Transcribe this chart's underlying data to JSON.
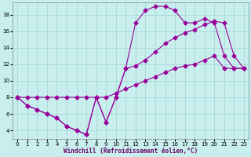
{
  "xlabel": "Windchill (Refroidissement éolien,°C)",
  "background_color": "#c8eeee",
  "grid_color": "#a0d4d4",
  "line_color": "#990099",
  "xlim": [
    -0.5,
    23.5
  ],
  "ylim": [
    3.0,
    19.5
  ],
  "xticks": [
    0,
    1,
    2,
    3,
    4,
    5,
    6,
    7,
    8,
    9,
    10,
    11,
    12,
    13,
    14,
    15,
    16,
    17,
    18,
    19,
    20,
    21,
    22,
    23
  ],
  "yticks": [
    4,
    6,
    8,
    10,
    12,
    14,
    16,
    18
  ],
  "line1_x": [
    0,
    1,
    2,
    3,
    4,
    5,
    6,
    7,
    8,
    9,
    10,
    11,
    12,
    13,
    14,
    15,
    16,
    17,
    18,
    19,
    20,
    21,
    22,
    23
  ],
  "line1_y": [
    8.0,
    7.0,
    6.5,
    6.0,
    5.5,
    4.5,
    4.0,
    3.5,
    8.0,
    5.0,
    8.0,
    11.5,
    17.0,
    18.5,
    19.0,
    19.0,
    18.5,
    17.0,
    17.0,
    17.5,
    17.0,
    13.0,
    11.5,
    11.5
  ],
  "line2_x": [
    0,
    1,
    2,
    3,
    4,
    5,
    6,
    7,
    8,
    9,
    10,
    11,
    12,
    13,
    14,
    15,
    16,
    17,
    18,
    19,
    20,
    21,
    22,
    23
  ],
  "line2_y": [
    8.0,
    7.0,
    6.5,
    6.0,
    5.5,
    4.5,
    4.0,
    3.5,
    8.0,
    5.0,
    8.0,
    11.5,
    11.8,
    12.5,
    13.5,
    14.5,
    15.2,
    15.8,
    16.2,
    16.8,
    17.2,
    17.0,
    13.0,
    11.5
  ],
  "line3_x": [
    0,
    1,
    2,
    3,
    4,
    5,
    6,
    7,
    8,
    9,
    10,
    11,
    12,
    13,
    14,
    15,
    16,
    17,
    18,
    19,
    20,
    21,
    22,
    23
  ],
  "line3_y": [
    8.0,
    8.0,
    8.0,
    8.0,
    8.0,
    8.0,
    8.0,
    8.0,
    8.0,
    8.0,
    8.5,
    9.0,
    9.5,
    10.0,
    10.5,
    11.0,
    11.5,
    11.8,
    12.0,
    12.5,
    13.0,
    11.5,
    11.5,
    11.5
  ],
  "marker": "D",
  "markersize": 2.5,
  "linewidth": 0.8,
  "tick_labelsize": 5.0,
  "xlabel_fontsize": 5.5
}
